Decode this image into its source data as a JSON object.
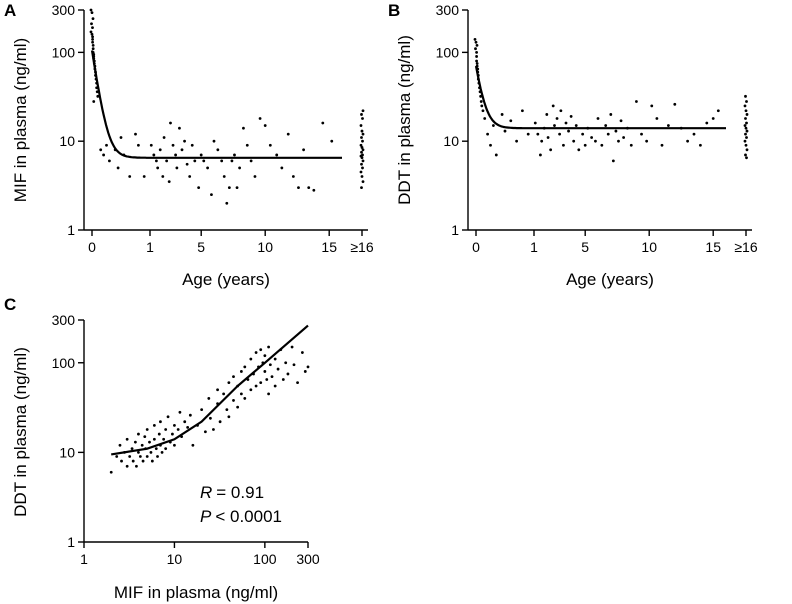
{
  "chart_data": [
    {
      "panel": "A",
      "type": "scatter",
      "xscale": "broken",
      "yscale": "log",
      "xlabel": "Age (years)",
      "ylabel": "MIF in plasma (ng/ml)",
      "yticks": [
        1,
        10,
        100,
        300
      ],
      "ytick_labels": [
        "1",
        "10",
        "100",
        "300"
      ],
      "xticks": [
        0,
        1,
        5,
        10,
        15,
        16
      ],
      "xtick_labels": [
        "0",
        "1",
        "5",
        "10",
        "15",
        "≥16"
      ],
      "fit": {
        "type": "exponential-decay",
        "y0": 105,
        "plateau": 6.5
      },
      "points": [
        [
          0,
          300
        ],
        [
          0,
          280
        ],
        [
          0,
          240
        ],
        [
          0,
          210
        ],
        [
          0,
          190
        ],
        [
          0,
          170
        ],
        [
          0,
          160
        ],
        [
          0.01,
          150
        ],
        [
          0.01,
          140
        ],
        [
          0.01,
          130
        ],
        [
          0.02,
          120
        ],
        [
          0.02,
          110
        ],
        [
          0.02,
          100
        ],
        [
          0.03,
          95
        ],
        [
          0.03,
          90
        ],
        [
          0.03,
          85
        ],
        [
          0.04,
          80
        ],
        [
          0.04,
          75
        ],
        [
          0.05,
          70
        ],
        [
          0.05,
          65
        ],
        [
          0.06,
          60
        ],
        [
          0.06,
          55
        ],
        [
          0.07,
          50
        ],
        [
          0.08,
          45
        ],
        [
          0.08,
          40
        ],
        [
          0.09,
          36
        ],
        [
          0.1,
          32
        ],
        [
          0.03,
          28
        ],
        [
          0.15,
          8
        ],
        [
          0.2,
          7
        ],
        [
          0.25,
          9
        ],
        [
          0.3,
          6
        ],
        [
          0.4,
          8
        ],
        [
          0.45,
          5
        ],
        [
          0.5,
          11
        ],
        [
          0.55,
          7
        ],
        [
          0.65,
          4
        ],
        [
          0.75,
          12
        ],
        [
          0.8,
          9
        ],
        [
          0.9,
          4
        ],
        [
          1.1,
          9
        ],
        [
          1.3,
          7
        ],
        [
          1.5,
          6
        ],
        [
          1.6,
          5
        ],
        [
          1.8,
          8
        ],
        [
          2.0,
          4
        ],
        [
          2.1,
          11
        ],
        [
          2.3,
          6
        ],
        [
          2.5,
          3.5
        ],
        [
          2.6,
          16
        ],
        [
          2.8,
          9
        ],
        [
          3.0,
          7
        ],
        [
          3.1,
          5
        ],
        [
          3.3,
          14
        ],
        [
          3.5,
          8
        ],
        [
          3.7,
          10
        ],
        [
          3.9,
          5.5
        ],
        [
          4.1,
          4
        ],
        [
          4.3,
          9
        ],
        [
          4.5,
          6
        ],
        [
          4.8,
          3
        ],
        [
          5.0,
          7
        ],
        [
          5.2,
          6
        ],
        [
          5.5,
          5
        ],
        [
          5.8,
          2.5
        ],
        [
          6.0,
          10
        ],
        [
          6.3,
          8
        ],
        [
          6.6,
          6
        ],
        [
          6.8,
          4
        ],
        [
          7.0,
          2
        ],
        [
          7.2,
          3
        ],
        [
          7.4,
          6
        ],
        [
          7.6,
          7
        ],
        [
          7.8,
          3
        ],
        [
          8.0,
          5
        ],
        [
          8.3,
          14
        ],
        [
          8.6,
          9
        ],
        [
          8.9,
          6
        ],
        [
          9.2,
          4
        ],
        [
          9.6,
          18
        ],
        [
          10.0,
          15
        ],
        [
          10.4,
          9
        ],
        [
          10.9,
          7
        ],
        [
          11.3,
          5
        ],
        [
          11.8,
          12
        ],
        [
          12.2,
          4
        ],
        [
          12.6,
          3
        ],
        [
          13.0,
          8
        ],
        [
          13.4,
          3
        ],
        [
          13.8,
          2.8
        ],
        [
          14.5,
          16
        ],
        [
          15.2,
          10
        ],
        [
          16,
          22
        ],
        [
          16,
          20
        ],
        [
          16,
          18
        ],
        [
          16,
          15
        ],
        [
          16,
          13
        ],
        [
          16,
          12
        ],
        [
          16,
          11
        ],
        [
          16,
          10
        ],
        [
          16,
          9
        ],
        [
          16,
          8.5
        ],
        [
          16,
          8
        ],
        [
          16,
          7.5
        ],
        [
          16,
          7
        ],
        [
          16,
          6.8
        ],
        [
          16,
          6.5
        ],
        [
          16,
          6
        ],
        [
          16,
          5.5
        ],
        [
          16,
          5
        ],
        [
          16,
          4.5
        ],
        [
          16,
          4
        ],
        [
          16,
          3.5
        ],
        [
          16,
          3
        ]
      ]
    },
    {
      "panel": "B",
      "type": "scatter",
      "xscale": "broken",
      "yscale": "log",
      "xlabel": "Age (years)",
      "ylabel": "DDT in plasma (ng/ml)",
      "yticks": [
        1,
        10,
        100,
        300
      ],
      "ytick_labels": [
        "1",
        "10",
        "100",
        "300"
      ],
      "xticks": [
        0,
        1,
        5,
        10,
        15,
        16
      ],
      "xtick_labels": [
        "0",
        "1",
        "5",
        "10",
        "15",
        "≥16"
      ],
      "fit": {
        "type": "exponential-decay",
        "y0": 70,
        "plateau": 14
      },
      "points": [
        [
          0,
          140
        ],
        [
          0,
          130
        ],
        [
          0,
          120
        ],
        [
          0,
          110
        ],
        [
          0.01,
          100
        ],
        [
          0.01,
          90
        ],
        [
          0.01,
          80
        ],
        [
          0.02,
          75
        ],
        [
          0.02,
          70
        ],
        [
          0.03,
          65
        ],
        [
          0.03,
          60
        ],
        [
          0.04,
          55
        ],
        [
          0.04,
          50
        ],
        [
          0.05,
          45
        ],
        [
          0.06,
          40
        ],
        [
          0.07,
          36
        ],
        [
          0.08,
          32
        ],
        [
          0.09,
          28
        ],
        [
          0.1,
          25
        ],
        [
          0.12,
          22
        ],
        [
          0.15,
          18
        ],
        [
          0.2,
          12
        ],
        [
          0.25,
          9
        ],
        [
          0.3,
          15
        ],
        [
          0.35,
          7
        ],
        [
          0.45,
          20
        ],
        [
          0.5,
          13
        ],
        [
          0.6,
          17
        ],
        [
          0.7,
          10
        ],
        [
          0.8,
          22
        ],
        [
          0.9,
          12
        ],
        [
          1.1,
          16
        ],
        [
          1.3,
          12
        ],
        [
          1.5,
          7
        ],
        [
          1.6,
          10
        ],
        [
          1.8,
          14
        ],
        [
          2.0,
          20
        ],
        [
          2.1,
          11
        ],
        [
          2.3,
          8
        ],
        [
          2.5,
          25
        ],
        [
          2.6,
          15
        ],
        [
          2.8,
          18
        ],
        [
          3.0,
          12
        ],
        [
          3.1,
          22
        ],
        [
          3.3,
          9
        ],
        [
          3.5,
          16
        ],
        [
          3.7,
          13
        ],
        [
          3.9,
          19
        ],
        [
          4.1,
          10
        ],
        [
          4.3,
          15
        ],
        [
          4.5,
          8
        ],
        [
          4.8,
          12
        ],
        [
          5.0,
          9
        ],
        [
          5.2,
          14
        ],
        [
          5.5,
          11
        ],
        [
          5.8,
          10
        ],
        [
          6.0,
          18
        ],
        [
          6.3,
          9
        ],
        [
          6.6,
          15
        ],
        [
          6.8,
          12
        ],
        [
          7.0,
          20
        ],
        [
          7.2,
          6
        ],
        [
          7.4,
          13
        ],
        [
          7.6,
          10
        ],
        [
          7.8,
          17
        ],
        [
          8.0,
          11
        ],
        [
          8.3,
          14
        ],
        [
          8.6,
          9
        ],
        [
          9.0,
          28
        ],
        [
          9.4,
          12
        ],
        [
          9.8,
          10
        ],
        [
          10.2,
          25
        ],
        [
          10.6,
          18
        ],
        [
          11.0,
          9
        ],
        [
          11.5,
          15
        ],
        [
          12.0,
          26
        ],
        [
          12.5,
          14
        ],
        [
          13.0,
          10
        ],
        [
          13.5,
          12
        ],
        [
          14.0,
          9
        ],
        [
          14.5,
          16
        ],
        [
          15.0,
          18
        ],
        [
          15.4,
          22
        ],
        [
          16,
          32
        ],
        [
          16,
          28
        ],
        [
          16,
          25
        ],
        [
          16,
          22
        ],
        [
          16,
          20
        ],
        [
          16,
          18
        ],
        [
          16,
          16
        ],
        [
          16,
          15
        ],
        [
          16,
          14
        ],
        [
          16,
          13
        ],
        [
          16,
          12
        ],
        [
          16,
          11
        ],
        [
          16,
          10
        ],
        [
          16,
          9
        ],
        [
          16,
          8
        ],
        [
          16,
          7
        ],
        [
          16,
          6.5
        ]
      ]
    },
    {
      "panel": "C",
      "type": "scatter",
      "xscale": "log",
      "yscale": "log",
      "xlabel": "MIF in plasma (ng/ml)",
      "ylabel": "DDT in plasma (ng/ml)",
      "xticks": [
        1,
        10,
        100,
        300
      ],
      "xtick_labels": [
        "1",
        "10",
        "100",
        "300"
      ],
      "yticks": [
        1,
        10,
        100,
        300
      ],
      "ytick_labels": [
        "1",
        "10",
        "100",
        "300"
      ],
      "fit": {
        "type": "power",
        "from": 2,
        "to": 300,
        "points": [
          [
            2,
            9.5
          ],
          [
            5,
            11
          ],
          [
            10,
            14
          ],
          [
            20,
            22
          ],
          [
            50,
            55
          ],
          [
            100,
            100
          ],
          [
            300,
            260
          ]
        ]
      },
      "annotations": {
        "r_symbol": "R",
        "r_value": "= 0.91",
        "p_symbol": "P",
        "p_value": "< 0.0001"
      },
      "points": [
        [
          2,
          6
        ],
        [
          2.3,
          9
        ],
        [
          2.5,
          12
        ],
        [
          2.6,
          8
        ],
        [
          2.8,
          10
        ],
        [
          3,
          7
        ],
        [
          3,
          14
        ],
        [
          3.2,
          9
        ],
        [
          3.4,
          11
        ],
        [
          3.5,
          8
        ],
        [
          3.7,
          13
        ],
        [
          3.8,
          7
        ],
        [
          4,
          10
        ],
        [
          4,
          16
        ],
        [
          4.2,
          9
        ],
        [
          4.4,
          12
        ],
        [
          4.5,
          8
        ],
        [
          4.7,
          15
        ],
        [
          4.8,
          11
        ],
        [
          5,
          9
        ],
        [
          5,
          18
        ],
        [
          5.3,
          13
        ],
        [
          5.5,
          10
        ],
        [
          5.7,
          8
        ],
        [
          6,
          14
        ],
        [
          6,
          20
        ],
        [
          6.3,
          11
        ],
        [
          6.5,
          9
        ],
        [
          6.8,
          16
        ],
        [
          7,
          12
        ],
        [
          7,
          22
        ],
        [
          7.3,
          10
        ],
        [
          7.6,
          14
        ],
        [
          8,
          18
        ],
        [
          8,
          11
        ],
        [
          8.5,
          25
        ],
        [
          9,
          13
        ],
        [
          9.5,
          16
        ],
        [
          10,
          20
        ],
        [
          10,
          12
        ],
        [
          11,
          18
        ],
        [
          11.5,
          28
        ],
        [
          12,
          15
        ],
        [
          13,
          22
        ],
        [
          14,
          19
        ],
        [
          15,
          26
        ],
        [
          16,
          12
        ],
        [
          18,
          20
        ],
        [
          20,
          30
        ],
        [
          22,
          17
        ],
        [
          24,
          40
        ],
        [
          25,
          24
        ],
        [
          27,
          18
        ],
        [
          30,
          50
        ],
        [
          30,
          35
        ],
        [
          32,
          22
        ],
        [
          35,
          45
        ],
        [
          38,
          30
        ],
        [
          40,
          60
        ],
        [
          40,
          25
        ],
        [
          45,
          70
        ],
        [
          45,
          38
        ],
        [
          50,
          55
        ],
        [
          50,
          32
        ],
        [
          55,
          80
        ],
        [
          55,
          45
        ],
        [
          60,
          90
        ],
        [
          60,
          40
        ],
        [
          65,
          65
        ],
        [
          70,
          110
        ],
        [
          70,
          50
        ],
        [
          75,
          75
        ],
        [
          80,
          130
        ],
        [
          80,
          55
        ],
        [
          85,
          90
        ],
        [
          90,
          140
        ],
        [
          90,
          60
        ],
        [
          95,
          100
        ],
        [
          100,
          80
        ],
        [
          100,
          120
        ],
        [
          105,
          65
        ],
        [
          110,
          150
        ],
        [
          110,
          45
        ],
        [
          115,
          95
        ],
        [
          120,
          70
        ],
        [
          130,
          110
        ],
        [
          130,
          55
        ],
        [
          140,
          85
        ],
        [
          150,
          140
        ],
        [
          160,
          65
        ],
        [
          170,
          100
        ],
        [
          180,
          75
        ],
        [
          200,
          150
        ],
        [
          210,
          95
        ],
        [
          230,
          60
        ],
        [
          260,
          130
        ],
        [
          280,
          80
        ],
        [
          300,
          90
        ]
      ]
    }
  ]
}
